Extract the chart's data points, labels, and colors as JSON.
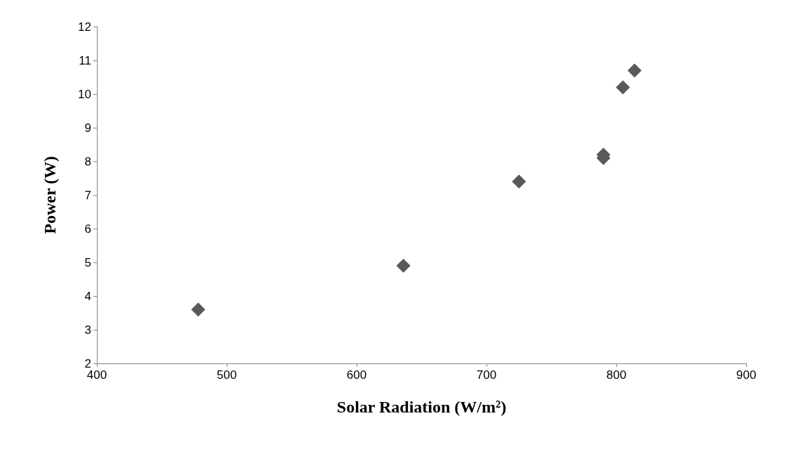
{
  "chart_data": {
    "type": "scatter",
    "xlabel": "Solar Radiation (W/m²)",
    "ylabel": "Power (W)",
    "x": [
      478,
      636,
      725,
      790,
      790,
      805,
      814
    ],
    "values": [
      3.6,
      4.9,
      7.4,
      8.1,
      8.2,
      10.2,
      10.7
    ],
    "color": "#595959",
    "marker": "diamond",
    "xlim": [
      400,
      900
    ],
    "xticks": [
      400,
      500,
      600,
      700,
      800,
      900
    ],
    "ylim": [
      2,
      12
    ],
    "yticks": [
      2,
      3,
      4,
      5,
      6,
      7,
      8,
      9,
      10,
      11,
      12
    ],
    "grid": false
  }
}
